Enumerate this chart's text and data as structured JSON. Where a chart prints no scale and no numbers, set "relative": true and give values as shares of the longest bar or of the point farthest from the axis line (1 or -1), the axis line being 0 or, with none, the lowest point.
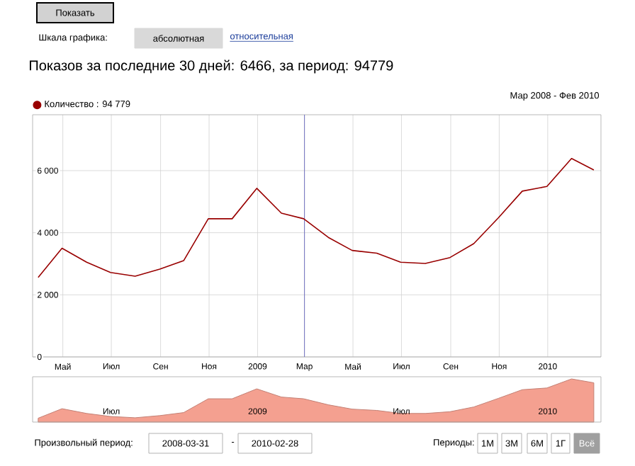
{
  "chart_data": [
    {
      "type": "line",
      "title": "Показов за последние 30 дней: 6466, за период: 94779",
      "x": [
        "2008-03-31",
        "2008-04-30",
        "2008-05-31",
        "2008-06-30",
        "2008-07-31",
        "2008-08-31",
        "2008-09-30",
        "2008-10-31",
        "2008-11-30",
        "2008-12-31",
        "2009-01-31",
        "2009-02-28",
        "2009-03-31",
        "2009-04-30",
        "2009-05-31",
        "2009-06-30",
        "2009-07-31",
        "2009-08-31",
        "2009-09-30",
        "2009-10-31",
        "2009-11-30",
        "2009-12-31",
        "2010-01-31",
        "2010-02-28"
      ],
      "series": [
        {
          "name": "Количество : 94 779",
          "color": "#990000",
          "values": [
            2560,
            3500,
            3050,
            2720,
            2600,
            2830,
            3100,
            4450,
            4450,
            5430,
            4630,
            4450,
            3850,
            3430,
            3340,
            3050,
            3010,
            3200,
            3650,
            4480,
            5340,
            5490,
            6390,
            6020
          ]
        }
      ],
      "xlim": [
        "2008-03-24",
        "2010-03-09"
      ],
      "ylim": [
        0,
        7800
      ],
      "xticks": [
        {
          "value": "2008-05-01",
          "label": "Май"
        },
        {
          "value": "2008-07-01",
          "label": "Июл"
        },
        {
          "value": "2008-09-01",
          "label": "Сен"
        },
        {
          "value": "2008-11-01",
          "label": "Ноя"
        },
        {
          "value": "2009-01-01",
          "label": "2009"
        },
        {
          "value": "2009-03-01",
          "label": "Мар"
        },
        {
          "value": "2009-05-01",
          "label": "Май"
        },
        {
          "value": "2009-07-01",
          "label": "Июл"
        },
        {
          "value": "2009-09-01",
          "label": "Сен"
        },
        {
          "value": "2009-11-01",
          "label": "Ноя"
        },
        {
          "value": "2010-01-01",
          "label": "2010"
        }
      ],
      "yticks": [
        {
          "value": 0,
          "label": "0"
        },
        {
          "value": 2000,
          "label": "2 000"
        },
        {
          "value": 4000,
          "label": "4 000"
        },
        {
          "value": 6000,
          "label": "6 000"
        }
      ],
      "ref_lines": [
        {
          "axis": "x",
          "value": "2009-03-01",
          "color": "#7070c0"
        }
      ],
      "grid": true,
      "legend": "top left",
      "marker": "none",
      "line_style": "solid",
      "annotations": [
        "Показать",
        "Шкала графика:",
        "абсолютная",
        "относительная",
        "Мар 2008 - Фев 2010"
      ]
    },
    {
      "type": "area",
      "relative": true,
      "x": [
        "2008-03-31",
        "2008-04-30",
        "2008-05-31",
        "2008-06-30",
        "2008-07-31",
        "2008-08-31",
        "2008-09-30",
        "2008-10-31",
        "2008-11-30",
        "2008-12-31",
        "2009-01-31",
        "2009-02-28",
        "2009-03-31",
        "2009-04-30",
        "2009-05-31",
        "2009-06-30",
        "2009-07-31",
        "2009-08-31",
        "2009-09-30",
        "2009-10-31",
        "2009-11-30",
        "2009-12-31",
        "2010-01-31",
        "2010-02-28"
      ],
      "series": [
        {
          "color": "#f4a090",
          "values": [
            0.09,
            0.31,
            0.2,
            0.13,
            0.1,
            0.15,
            0.22,
            0.54,
            0.54,
            0.77,
            0.58,
            0.54,
            0.4,
            0.3,
            0.27,
            0.2,
            0.2,
            0.24,
            0.35,
            0.55,
            0.75,
            0.79,
            1.0,
            0.91
          ]
        }
      ],
      "xlim": [
        "2008-03-24",
        "2010-03-09"
      ],
      "xticks": [
        {
          "value": "2008-07-01",
          "label": "Июл"
        },
        {
          "value": "2009-01-01",
          "label": "2009"
        },
        {
          "value": "2009-07-01",
          "label": "Июл"
        },
        {
          "value": "2010-01-01",
          "label": "2010"
        }
      ],
      "tick_labels": "x",
      "annotations": [
        "Произвольный период:",
        "2008-03-31",
        "-",
        "2010-02-28",
        "Периоды:",
        "1М",
        "3М",
        "6М",
        "1Г",
        "Всё"
      ]
    }
  ]
}
